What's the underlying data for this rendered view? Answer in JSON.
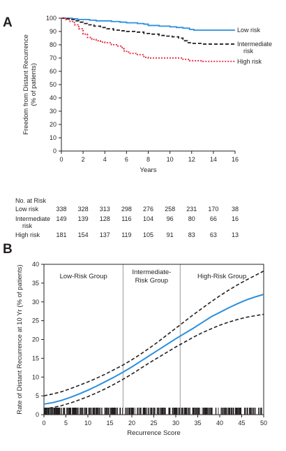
{
  "chart_data": [
    {
      "panel": "A",
      "type": "line",
      "step": true,
      "xlabel": "Years",
      "ylabel": "Freedom from Distant Recurrence (% of patients)",
      "xlim": [
        0,
        16
      ],
      "ylim": [
        0,
        100
      ],
      "xticks": [
        0,
        2,
        4,
        6,
        8,
        10,
        12,
        14,
        16
      ],
      "yticks": [
        0,
        10,
        20,
        30,
        40,
        50,
        60,
        70,
        80,
        90,
        100
      ],
      "grid": false,
      "legend": "inline-right",
      "series": [
        {
          "name": "Low risk",
          "color": "#2b8fde",
          "style": "solid",
          "points": [
            [
              0,
              100
            ],
            [
              0.6,
              100
            ],
            [
              1.0,
              99.5
            ],
            [
              1.5,
              99.0
            ],
            [
              2.0,
              99.0
            ],
            [
              2.6,
              98.5
            ],
            [
              3.2,
              98.0
            ],
            [
              4.0,
              98.0
            ],
            [
              4.6,
              97.5
            ],
            [
              5.4,
              97.0
            ],
            [
              6.0,
              96.5
            ],
            [
              7.0,
              96.0
            ],
            [
              7.6,
              95.5
            ],
            [
              8.0,
              94.5
            ],
            [
              9.0,
              94.0
            ],
            [
              10.0,
              93.5
            ],
            [
              10.6,
              93.0
            ],
            [
              11.2,
              92.5
            ],
            [
              11.8,
              91.5
            ],
            [
              12.2,
              91.0
            ],
            [
              16.0,
              91.0
            ]
          ],
          "label_lines": [
            "Low risk"
          ]
        },
        {
          "name": "Intermediate risk",
          "color": "#231f20",
          "style": "dashed",
          "points": [
            [
              0,
              100
            ],
            [
              0.4,
              99.5
            ],
            [
              0.8,
              99.0
            ],
            [
              1.2,
              98.0
            ],
            [
              1.6,
              97.0
            ],
            [
              2.0,
              96.0
            ],
            [
              2.4,
              95.0
            ],
            [
              3.0,
              94.0
            ],
            [
              3.6,
              93.0
            ],
            [
              4.2,
              92.0
            ],
            [
              4.8,
              91.0
            ],
            [
              5.4,
              90.5
            ],
            [
              6.0,
              90.0
            ],
            [
              7.0,
              89.5
            ],
            [
              7.6,
              88.5
            ],
            [
              8.2,
              88.0
            ],
            [
              9.0,
              87.0
            ],
            [
              9.6,
              86.5
            ],
            [
              10.2,
              86.0
            ],
            [
              10.8,
              85.0
            ],
            [
              11.2,
              83.0
            ],
            [
              11.6,
              81.5
            ],
            [
              12.0,
              81.0
            ],
            [
              13.0,
              80.5
            ],
            [
              16.0,
              80.5
            ]
          ],
          "label_lines": [
            "Intermediate",
            "risk"
          ]
        },
        {
          "name": "High risk",
          "color": "#e8203a",
          "style": "dotted",
          "points": [
            [
              0,
              100
            ],
            [
              0.4,
              99.0
            ],
            [
              0.8,
              97.5
            ],
            [
              1.2,
              95.0
            ],
            [
              1.6,
              92.0
            ],
            [
              2.0,
              88.0
            ],
            [
              2.4,
              85.5
            ],
            [
              2.8,
              84.0
            ],
            [
              3.2,
              83.0
            ],
            [
              3.6,
              82.0
            ],
            [
              4.0,
              81.5
            ],
            [
              4.6,
              80.0
            ],
            [
              5.2,
              79.0
            ],
            [
              5.6,
              77.0
            ],
            [
              5.8,
              75.0
            ],
            [
              6.2,
              73.5
            ],
            [
              7.0,
              72.5
            ],
            [
              7.6,
              70.5
            ],
            [
              8.0,
              70.0
            ],
            [
              10.6,
              70.0
            ],
            [
              11.2,
              69.0
            ],
            [
              11.8,
              68.0
            ],
            [
              13.0,
              67.5
            ],
            [
              16.0,
              67.5
            ]
          ],
          "label_lines": [
            "High risk"
          ]
        }
      ],
      "risk_table": {
        "title": "No. at Risk",
        "rows": [
          {
            "label_lines": [
              "Low risk"
            ],
            "values": [
              "338",
              "328",
              "313",
              "298",
              "276",
              "258",
              "231",
              "170",
              "38"
            ]
          },
          {
            "label_lines": [
              "Intermediate",
              "risk"
            ],
            "values": [
              "149",
              "139",
              "128",
              "116",
              "104",
              "96",
              "80",
              "66",
              "16"
            ]
          },
          {
            "label_lines": [
              "High risk"
            ],
            "values": [
              "181",
              "154",
              "137",
              "119",
              "105",
              "91",
              "83",
              "63",
              "13"
            ]
          }
        ]
      }
    },
    {
      "panel": "B",
      "type": "line",
      "xlabel": "Recurrence Score",
      "ylabel": "Rate of Distant Recurrence at 10 Yr (% of patients)",
      "xlim": [
        0,
        50
      ],
      "ylim": [
        0,
        40
      ],
      "xticks": [
        0,
        5,
        10,
        15,
        20,
        25,
        30,
        35,
        40,
        45,
        50
      ],
      "yticks": [
        0,
        5,
        10,
        15,
        20,
        25,
        30,
        35,
        40
      ],
      "grid": false,
      "cutpoints": [
        18,
        31
      ],
      "group_labels": [
        {
          "lines": [
            "Low-Risk Group"
          ],
          "x": 9
        },
        {
          "lines": [
            "Intermediate-",
            "Risk Group"
          ],
          "x": 24.5
        },
        {
          "lines": [
            "High-Risk Group"
          ],
          "x": 40.5
        }
      ],
      "series": [
        {
          "name": "",
          "color": "#2b8fde",
          "style": "solid",
          "points": [
            [
              0,
              2.8
            ],
            [
              2,
              3.2
            ],
            [
              4,
              3.8
            ],
            [
              6,
              4.6
            ],
            [
              8,
              5.5
            ],
            [
              10,
              6.5
            ],
            [
              12,
              7.6
            ],
            [
              14,
              8.8
            ],
            [
              16,
              10.0
            ],
            [
              18,
              11.3
            ],
            [
              20,
              12.7
            ],
            [
              22,
              14.2
            ],
            [
              24,
              15.7
            ],
            [
              26,
              17.2
            ],
            [
              28,
              18.7
            ],
            [
              30,
              20.2
            ],
            [
              32,
              21.6
            ],
            [
              34,
              23.0
            ],
            [
              36,
              24.5
            ],
            [
              38,
              26.0
            ],
            [
              40,
              27.2
            ],
            [
              42,
              28.4
            ],
            [
              44,
              29.5
            ],
            [
              46,
              30.5
            ],
            [
              48,
              31.3
            ],
            [
              50,
              32.0
            ]
          ]
        },
        {
          "name": "",
          "color": "#231f20",
          "style": "dashed",
          "points": [
            [
              0,
              5.0
            ],
            [
              2,
              5.5
            ],
            [
              4,
              6.1
            ],
            [
              6,
              6.9
            ],
            [
              8,
              7.8
            ],
            [
              10,
              8.7
            ],
            [
              12,
              9.7
            ],
            [
              14,
              10.8
            ],
            [
              16,
              12.0
            ],
            [
              18,
              13.2
            ],
            [
              20,
              14.6
            ],
            [
              22,
              16.1
            ],
            [
              24,
              17.7
            ],
            [
              26,
              19.4
            ],
            [
              28,
              21.2
            ],
            [
              30,
              23.0
            ],
            [
              32,
              24.8
            ],
            [
              34,
              26.6
            ],
            [
              36,
              28.3
            ],
            [
              38,
              30.0
            ],
            [
              40,
              31.6
            ],
            [
              42,
              33.1
            ],
            [
              44,
              34.5
            ],
            [
              46,
              35.8
            ],
            [
              48,
              37.0
            ],
            [
              50,
              38.2
            ]
          ]
        },
        {
          "name": "",
          "color": "#231f20",
          "style": "dashed",
          "points": [
            [
              0,
              1.5
            ],
            [
              2,
              1.9
            ],
            [
              4,
              2.4
            ],
            [
              6,
              3.1
            ],
            [
              8,
              3.9
            ],
            [
              10,
              4.8
            ],
            [
              12,
              5.8
            ],
            [
              14,
              6.9
            ],
            [
              16,
              8.1
            ],
            [
              18,
              9.4
            ],
            [
              20,
              10.8
            ],
            [
              22,
              12.3
            ],
            [
              24,
              13.8
            ],
            [
              26,
              15.2
            ],
            [
              28,
              16.6
            ],
            [
              30,
              18.0
            ],
            [
              32,
              19.3
            ],
            [
              34,
              20.6
            ],
            [
              36,
              21.8
            ],
            [
              38,
              22.8
            ],
            [
              40,
              23.8
            ],
            [
              42,
              24.6
            ],
            [
              44,
              25.3
            ],
            [
              46,
              25.9
            ],
            [
              48,
              26.3
            ],
            [
              50,
              26.7
            ]
          ]
        }
      ]
    }
  ]
}
